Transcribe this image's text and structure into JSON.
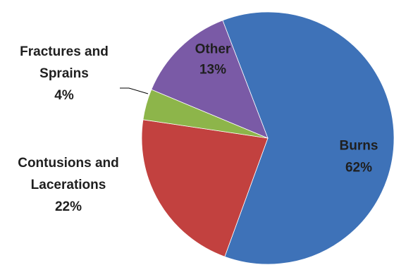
{
  "chart_data": {
    "type": "pie",
    "title": "",
    "start_angle_deg": -21,
    "direction": "clockwise",
    "slices": [
      {
        "label_lines": [
          "Burns"
        ],
        "percent_label": "62%",
        "value": 62,
        "color": "#3e72b8",
        "label_color": "#1f1f1f"
      },
      {
        "label_lines": [
          "Contusions and",
          "Lacerations"
        ],
        "percent_label": "22%",
        "value": 22,
        "color": "#c2413f",
        "label_color": "#1f1f1f"
      },
      {
        "label_lines": [
          "Fractures and",
          "Sprains"
        ],
        "percent_label": "4%",
        "value": 4,
        "color": "#8db54a",
        "label_color": "#1f1f1f"
      },
      {
        "label_lines": [
          "Other"
        ],
        "percent_label": "13%",
        "value": 13,
        "color": "#7a5aa6",
        "label_color": "#1f1f1f"
      }
    ],
    "legend": "none"
  }
}
